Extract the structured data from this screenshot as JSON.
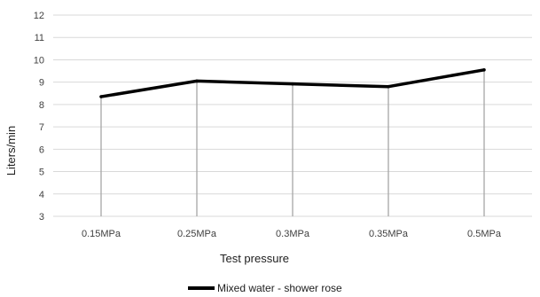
{
  "chart_data": {
    "type": "line",
    "title": "",
    "xlabel": "Test pressure",
    "ylabel": "Liters/min",
    "categories": [
      "0.15MPa",
      "0.25MPa",
      "0.3MPa",
      "0.35MPa",
      "0.5MPa"
    ],
    "series": [
      {
        "name": "Mixed water - shower rose",
        "values": [
          8.35,
          9.05,
          8.92,
          8.8,
          9.55
        ]
      }
    ],
    "ylim": [
      3,
      12
    ],
    "yticks": [
      3,
      4,
      5,
      6,
      7,
      8,
      9,
      10,
      11,
      12
    ],
    "grid": {
      "horizontal": true,
      "vertical_drop_lines": true
    },
    "legend": "bottom-center",
    "colors": {
      "line": "#000000",
      "grid": "#d9d9d9",
      "drop_line": "#a6a6a6",
      "text": "#404040"
    }
  }
}
